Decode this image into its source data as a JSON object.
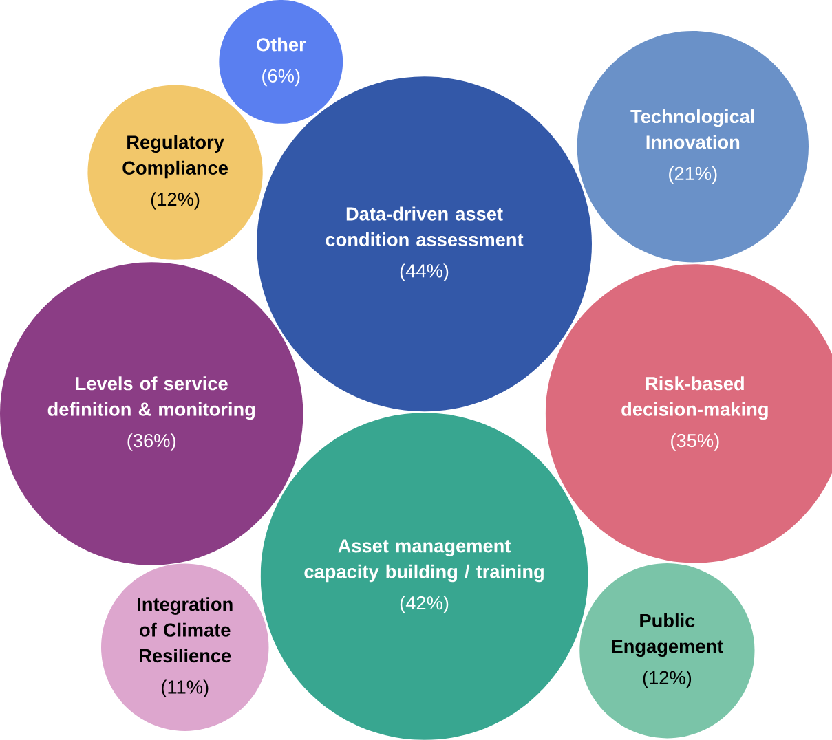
{
  "chart_data": {
    "type": "other",
    "categories": [
      "Other",
      "Regulatory Compliance",
      "Data-driven asset condition assessment",
      "Technological Innovation",
      "Levels of service definition & monitoring",
      "Risk-based decision-making",
      "Asset management capacity building / training",
      "Integration of Climate Resilience",
      "Public Engagement"
    ],
    "values": [
      6,
      12,
      44,
      21,
      36,
      35,
      42,
      11,
      12
    ],
    "value_labels": [
      "(6%)",
      "(12%)",
      "(44%)",
      "(21%)",
      "(36%)",
      "(35%)",
      "(42%)",
      "(11%)",
      "(12%)"
    ],
    "colors": [
      "#5a7ff0",
      "#f2c76a",
      "#3358a8",
      "#6a91c8",
      "#8b3d85",
      "#dc6b7d",
      "#38a690",
      "#dda6ce",
      "#7ac4a8"
    ]
  }
}
